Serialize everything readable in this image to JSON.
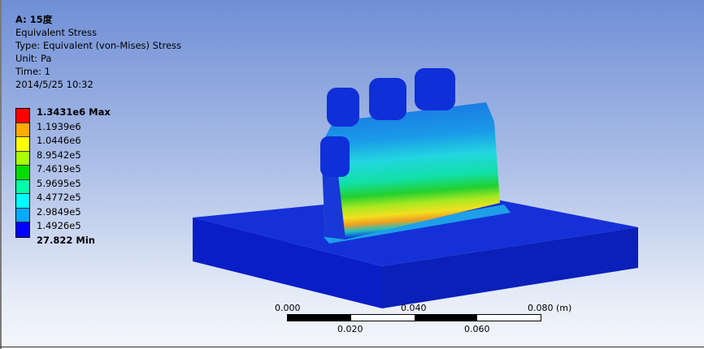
{
  "header": {
    "title": "A: 15度",
    "result_name": "Equivalent Stress",
    "type": "Type: Equivalent (von-Mises) Stress",
    "unit": "Unit: Pa",
    "time": "Time: 1",
    "date": "2014/5/25 10:32"
  },
  "legend": {
    "labels": [
      "1.3431e6 Max",
      "1.1939e6",
      "1.0446e6",
      "8.9542e5",
      "7.4619e5",
      "5.9695e5",
      "4.4772e5",
      "2.9849e5",
      "1.4926e5",
      "27.822 Min"
    ],
    "colors": [
      "#ff0000",
      "#ffaa00",
      "#ffff00",
      "#aaff00",
      "#00dd00",
      "#00ffaa",
      "#00ffff",
      "#00aaff",
      "#0000ff"
    ]
  },
  "scale_bar": {
    "top_labels": [
      "0.000",
      "0.040",
      "0.080 (m)"
    ],
    "bottom_labels": [
      "0.020",
      "0.060"
    ]
  }
}
